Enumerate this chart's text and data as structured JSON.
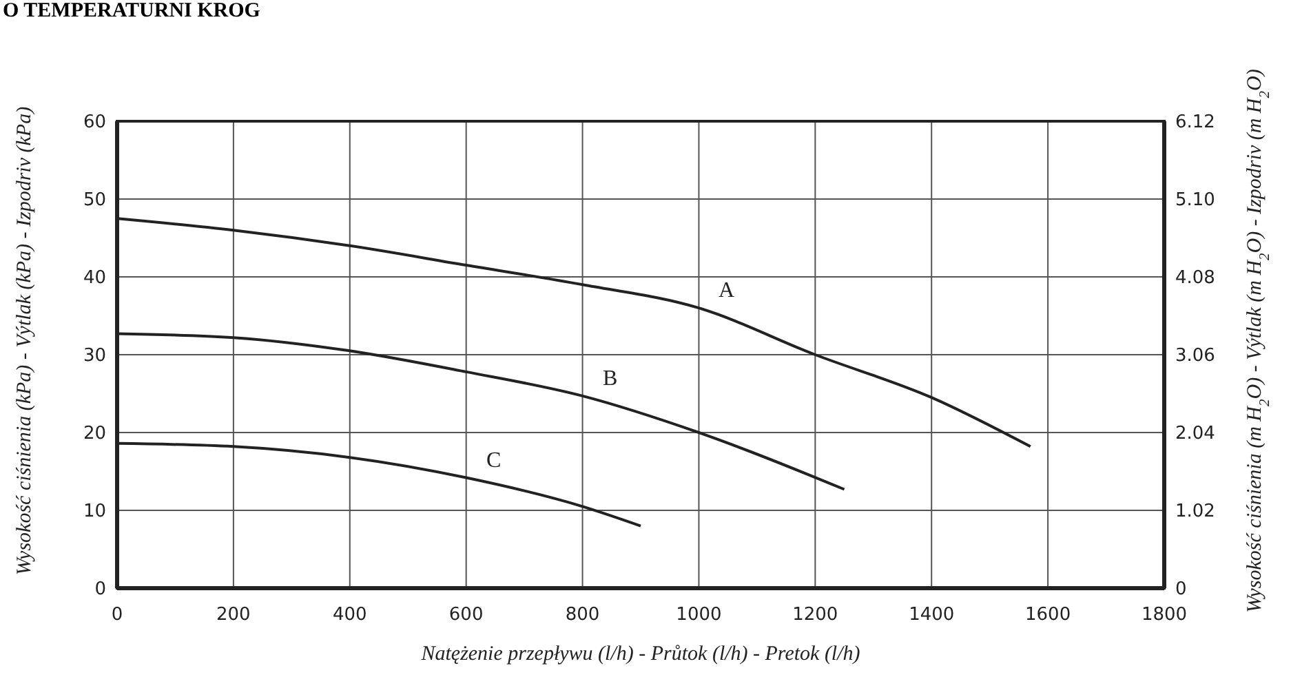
{
  "chart_data": {
    "type": "line",
    "title": "O TEMPERATURNI KROG",
    "xlabel": "Natężenie przepływu (l/h) - Průtok (l/h) - Pretok (l/h)",
    "ylabel": "Wysokość ciśnienia (kPa) - Výtlak (kPa) - Izpodriv (kPa)",
    "y2label": "Wysokość ciśnienia  (m H$_{2}$O) - Výtlak (m H$_{2}$O) - Izpodriv (m H$_{2}$O)",
    "xlim": [
      0,
      1800
    ],
    "xticks": [
      0,
      200,
      400,
      600,
      800,
      1000,
      1200,
      1400,
      1600,
      1800
    ],
    "ylim": [
      0,
      60
    ],
    "yticks": [
      0,
      10,
      20,
      30,
      40,
      50,
      60
    ],
    "y2lim": [
      0,
      6.12
    ],
    "y2ticks": [
      0,
      1.02,
      2.04,
      3.06,
      4.08,
      {
        "value": 5.1,
        "label": "5.10"
      },
      6.12
    ],
    "grid": true,
    "marker": "none",
    "line_style": "solid",
    "series": [
      {
        "color": "#222222",
        "x": [
          0,
          200,
          400,
          600,
          800,
          1000,
          1200,
          1400,
          1570
        ],
        "values": [
          47.5,
          46,
          44,
          41.5,
          39,
          36,
          30,
          24.5,
          18.2
        ]
      },
      {
        "color": "#222222",
        "x": [
          0,
          200,
          400,
          600,
          800,
          1000,
          1250
        ],
        "values": [
          32.7,
          32.2,
          30.5,
          27.8,
          24.7,
          20,
          12.7
        ]
      },
      {
        "color": "#222222",
        "x": [
          0,
          200,
          400,
          600,
          800,
          900
        ],
        "values": [
          18.6,
          18.2,
          16.8,
          14.2,
          10.5,
          8
        ]
      }
    ],
    "annotations": [
      {
        "text": "A",
        "x": 1000,
        "y": 36
      },
      {
        "text": "B",
        "x": 800,
        "y": 24.7
      },
      {
        "text": "C",
        "x": 600,
        "y": 14.2
      }
    ]
  }
}
